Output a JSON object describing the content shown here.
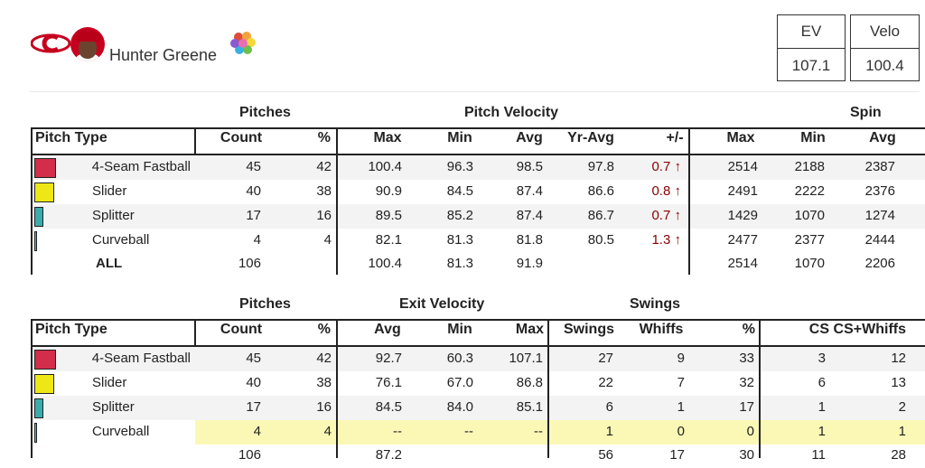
{
  "header": {
    "player_name": "Hunter Greene",
    "stats": [
      {
        "label": "EV",
        "value": "107.1"
      },
      {
        "label": "Velo",
        "value": "100.4"
      }
    ]
  },
  "colors": {
    "4-Seam Fastball": "#d22d49",
    "Slider": "#eee716",
    "Splitter": "#3bacac",
    "Curveball": "#00d1ed",
    "highlight": "#fbf8b6",
    "diff_up": "#8b0000",
    "brand_red": "#c6011f"
  },
  "table1": {
    "groups": {
      "pitches": "Pitches",
      "velocity": "Pitch Velocity",
      "spin": "Spin"
    },
    "columns": [
      "Pitch Type",
      "Count",
      "%",
      "Max",
      "Min",
      "Avg",
      "Yr-Avg",
      "+/-",
      "Max",
      "Min",
      "Avg"
    ],
    "rows": [
      {
        "name": "4-Seam Fastball",
        "count": "45",
        "pct": "42",
        "vmax": "100.4",
        "vmin": "96.3",
        "vavg": "98.5",
        "yravg": "97.8",
        "diff": "0.7 ↑",
        "smax": "2514",
        "smin": "2188",
        "savg": "2387"
      },
      {
        "name": "Slider",
        "count": "40",
        "pct": "38",
        "vmax": "90.9",
        "vmin": "84.5",
        "vavg": "87.4",
        "yravg": "86.6",
        "diff": "0.8 ↑",
        "smax": "2491",
        "smin": "2222",
        "savg": "2376"
      },
      {
        "name": "Splitter",
        "count": "17",
        "pct": "16",
        "vmax": "89.5",
        "vmin": "85.2",
        "vavg": "87.4",
        "yravg": "86.7",
        "diff": "0.7 ↑",
        "smax": "1429",
        "smin": "1070",
        "savg": "1274"
      },
      {
        "name": "Curveball",
        "count": "4",
        "pct": "4",
        "vmax": "82.1",
        "vmin": "81.3",
        "vavg": "81.8",
        "yravg": "80.5",
        "diff": "1.3 ↑",
        "smax": "2477",
        "smin": "2377",
        "savg": "2444"
      }
    ],
    "total": {
      "name": "ALL",
      "count": "106",
      "vmax": "100.4",
      "vmin": "81.3",
      "vavg": "91.9",
      "smax": "2514",
      "smin": "1070",
      "savg": "2206"
    }
  },
  "table2": {
    "groups": {
      "pitches": "Pitches",
      "ev": "Exit Velocity",
      "swings": "Swings"
    },
    "columns": [
      "Pitch Type",
      "Count",
      "%",
      "Avg",
      "Min",
      "Max",
      "Swings",
      "Whiffs",
      "%",
      "CS",
      "CS+Whiffs"
    ],
    "rows": [
      {
        "name": "4-Seam Fastball",
        "count": "45",
        "pct": "42",
        "evavg": "92.7",
        "evmin": "60.3",
        "evmax": "107.1",
        "swings": "27",
        "whiffs": "9",
        "wpct": "33",
        "cs": "3",
        "csw": "12"
      },
      {
        "name": "Slider",
        "count": "40",
        "pct": "38",
        "evavg": "76.1",
        "evmin": "67.0",
        "evmax": "86.8",
        "swings": "22",
        "whiffs": "7",
        "wpct": "32",
        "cs": "6",
        "csw": "13"
      },
      {
        "name": "Splitter",
        "count": "17",
        "pct": "16",
        "evavg": "84.5",
        "evmin": "84.0",
        "evmax": "85.1",
        "swings": "6",
        "whiffs": "1",
        "wpct": "17",
        "cs": "1",
        "csw": "2"
      },
      {
        "name": "Curveball",
        "count": "4",
        "pct": "4",
        "evavg": "--",
        "evmin": "--",
        "evmax": "--",
        "swings": "1",
        "whiffs": "0",
        "wpct": "0",
        "cs": "1",
        "csw": "1"
      }
    ],
    "total": {
      "count": "106",
      "evavg": "87.2",
      "swings": "56",
      "whiffs": "17",
      "wpct": "30",
      "cs": "11",
      "csw": "28"
    }
  }
}
